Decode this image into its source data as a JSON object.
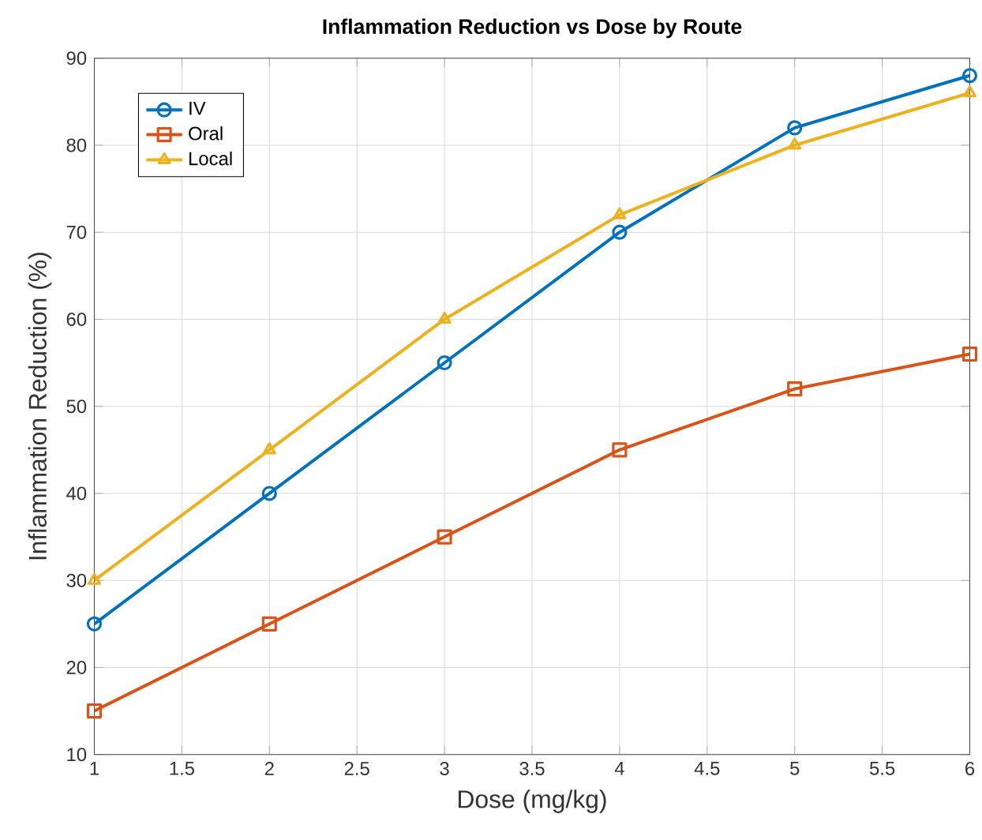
{
  "chart_data": {
    "type": "line",
    "title": "Inflammation Reduction vs Dose by Route",
    "xlabel": "Dose (mg/kg)",
    "ylabel": "Inflammation Reduction (%)",
    "x": [
      1,
      2,
      3,
      4,
      5,
      6
    ],
    "series": [
      {
        "name": "IV",
        "color": "#0072bd",
        "marker": "circle",
        "values": [
          25,
          40,
          55,
          70,
          82,
          88
        ]
      },
      {
        "name": "Oral",
        "color": "#d95319",
        "marker": "square",
        "values": [
          15,
          25,
          35,
          45,
          52,
          56
        ]
      },
      {
        "name": "Local",
        "color": "#edb120",
        "marker": "triangle",
        "values": [
          30,
          45,
          60,
          72,
          80,
          86
        ]
      }
    ],
    "xlim": [
      1,
      6
    ],
    "xticks": [
      1,
      1.5,
      2,
      2.5,
      3,
      3.5,
      4,
      4.5,
      5,
      5.5,
      6
    ],
    "ylim": [
      10,
      90
    ],
    "yticks": [
      10,
      20,
      30,
      40,
      50,
      60,
      70,
      80,
      90
    ],
    "grid": true,
    "legend": "top left",
    "line_style": "solid"
  }
}
